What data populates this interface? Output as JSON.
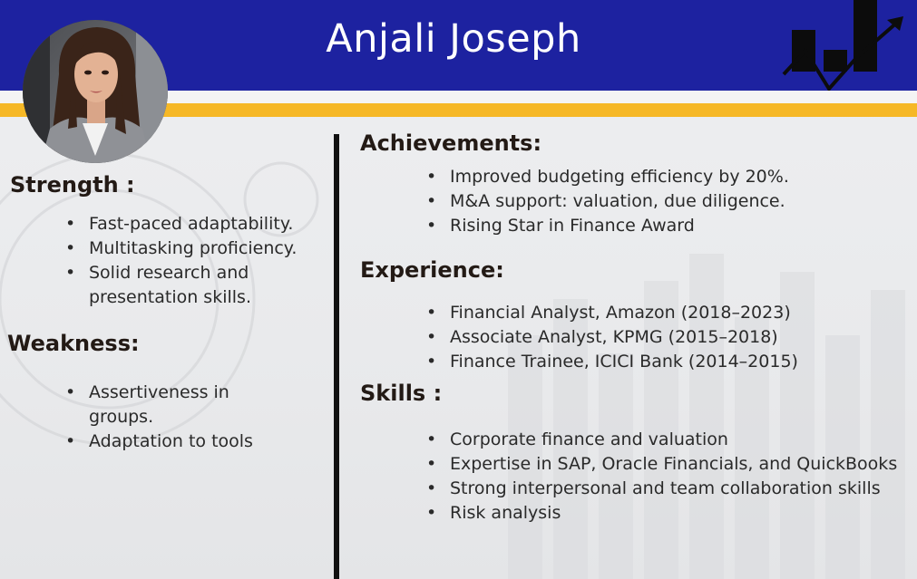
{
  "header": {
    "name": "Anjali Joseph",
    "icon": "growth-chart-icon",
    "avatar": "profile-photo"
  },
  "colors": {
    "header_bg": "#1d22a0",
    "accent_band": "#f6b826",
    "divider": "#111111"
  },
  "left": {
    "strength": {
      "heading": "Strength :",
      "items": [
        "Fast-paced adaptability.",
        "Multitasking proficiency.",
        "Solid research and presentation skills."
      ]
    },
    "weakness": {
      "heading": "Weakness:",
      "items": [
        "Assertiveness in groups.",
        "Adaptation to tools"
      ]
    }
  },
  "right": {
    "achievements": {
      "heading": "Achievements:",
      "items": [
        "Improved budgeting efficiency by 20%.",
        "M&A support: valuation, due diligence.",
        "Rising Star in Finance Award"
      ]
    },
    "experience": {
      "heading": "Experience:",
      "items": [
        "Financial Analyst, Amazon (2018–2023)",
        "Associate Analyst, KPMG (2015–2018)",
        "Finance Trainee, ICICI Bank (2014–2015)"
      ]
    },
    "skills": {
      "heading": "Skills :",
      "items": [
        "Corporate finance and valuation",
        "Expertise in SAP, Oracle Financials, and QuickBooks",
        "Strong interpersonal and team collaboration skills",
        "Risk analysis"
      ]
    }
  }
}
